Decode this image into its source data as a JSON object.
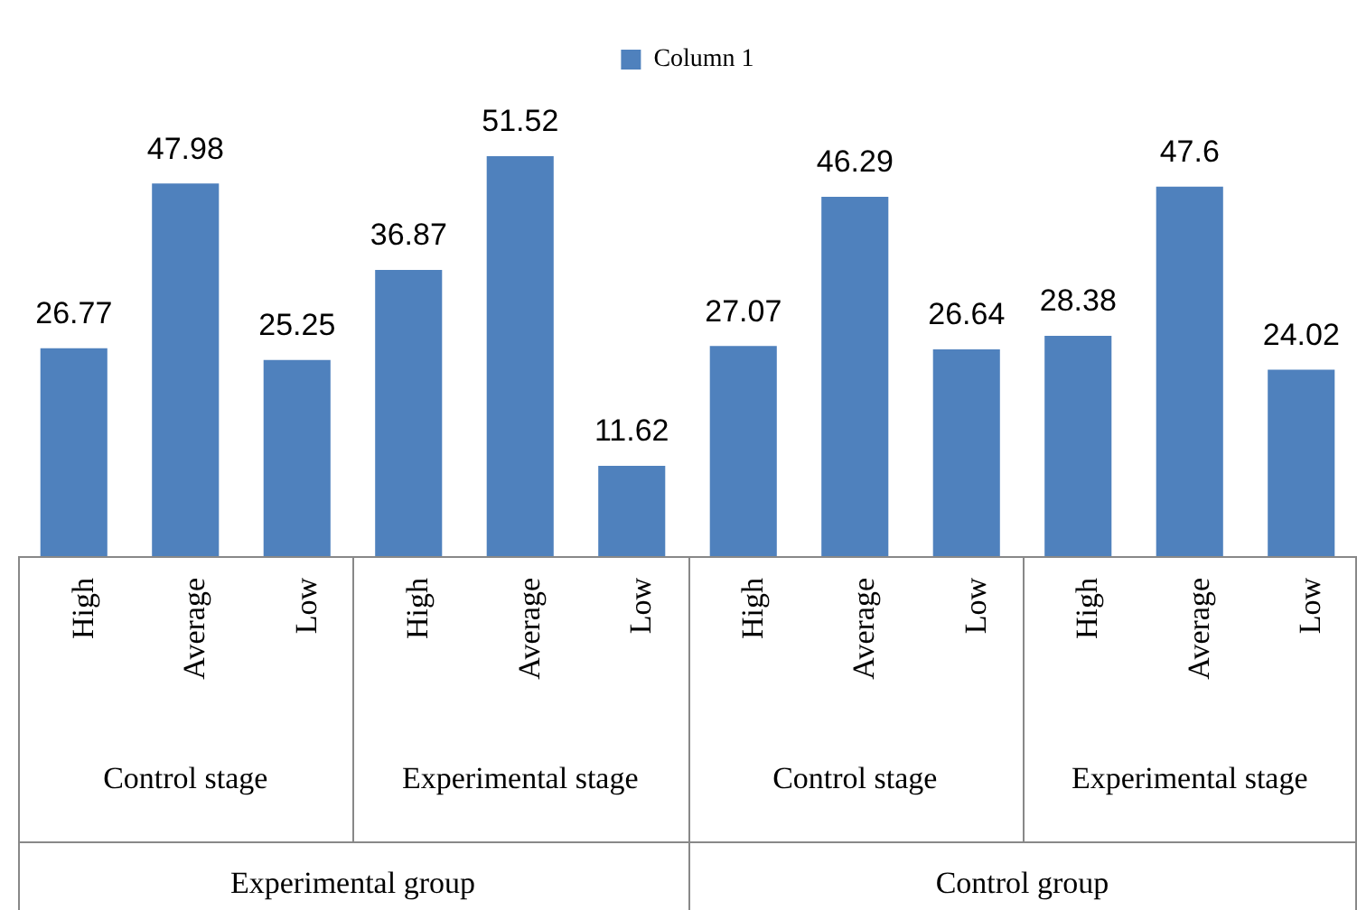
{
  "chart_data": {
    "type": "bar",
    "categories": [
      "High",
      "Average",
      "Low",
      "High",
      "Average",
      "Low",
      "High",
      "Average",
      "Low",
      "High",
      "Average",
      "Low"
    ],
    "series": [
      {
        "name": "Column 1",
        "color": "#4f81bd",
        "values": [
          26.77,
          47.98,
          25.25,
          36.87,
          51.52,
          11.62,
          27.07,
          46.29,
          26.64,
          28.38,
          47.6,
          24.02
        ]
      }
    ],
    "data_labels": true,
    "legend": "top",
    "annotations": [
      "Control stage",
      "Experimental stage",
      "Control stage",
      "Experimental stage",
      "Experimental group",
      "Control group"
    ]
  }
}
